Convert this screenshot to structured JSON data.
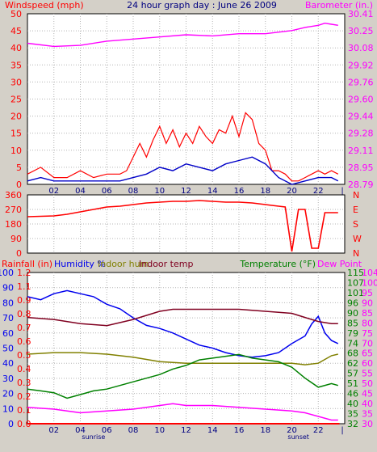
{
  "colors": {
    "background": "#d4d0c8",
    "plot_bg": "#ffffff",
    "grid": "#b4b4b4",
    "wind": "#ff0000",
    "gust": "#ff0000",
    "avg_wind": "#0000c8",
    "barometer": "#ff00ff",
    "direction": "#ff0000",
    "humidity": "#0000ee",
    "indoor_hum": "#808000",
    "indoor_temp": "#800020",
    "temperature": "#008000",
    "dew_point": "#ff00ff",
    "rainfall": "#ff0000",
    "title": "#000080"
  },
  "header": {
    "title": "24 hour graph day : June 26 2009",
    "left_label": "Windspeed (mph)",
    "right_label": "Barometer (in.)"
  },
  "bottom_header": {
    "rain": "Rainfall (in)",
    "humidity": "Humidity %",
    "indoor_hum": "Indoor hum",
    "indoor_temp": "Indoor temp",
    "temperature": "Temperature (°F)",
    "dew_point": "Dew Point"
  },
  "x_axis": {
    "ticks": [
      "02",
      "04",
      "06",
      "08",
      "10",
      "12",
      "14",
      "16",
      "18",
      "20",
      "22",
      "|"
    ],
    "sunrise_label": "sunrise",
    "sunset_label": "sunset"
  },
  "chart_data": [
    {
      "id": "wind",
      "type": "line",
      "x_range_hours": [
        0,
        24
      ],
      "y_left": {
        "label": "Windspeed (mph)",
        "ticks": [
          "0",
          "5",
          "10",
          "15",
          "20",
          "25",
          "30",
          "35",
          "40",
          "45",
          "50"
        ],
        "ylim": [
          0,
          50
        ]
      },
      "y_right": {
        "label": "Barometer (in.)",
        "ticks": [
          "28.79",
          "28.95",
          "29.11",
          "29.28",
          "29.44",
          "29.60",
          "29.76",
          "29.92",
          "30.08",
          "30.25",
          "30.41"
        ],
        "ylim": [
          28.79,
          30.41
        ]
      },
      "series": [
        {
          "key": "gust",
          "x": [
            0,
            1,
            2,
            3,
            4,
            5,
            6,
            7,
            7.5,
            8,
            8.5,
            9,
            9.5,
            10,
            10.5,
            11,
            11.5,
            12,
            12.5,
            13,
            13.5,
            14,
            14.5,
            15,
            15.5,
            16,
            16.5,
            17,
            17.5,
            18,
            18.5,
            19,
            19.5,
            20,
            20.5,
            21,
            21.5,
            22,
            22.5,
            23,
            23.5
          ],
          "y": [
            3,
            5,
            2,
            2,
            4,
            2,
            3,
            3,
            4,
            8,
            12,
            8,
            13,
            17,
            12,
            16,
            11,
            15,
            12,
            17,
            14,
            12,
            16,
            15,
            20,
            14,
            21,
            19,
            12,
            10,
            4,
            4,
            3,
            1,
            1,
            2,
            3,
            4,
            3,
            4,
            3
          ]
        },
        {
          "key": "avg_wind",
          "x": [
            0,
            1,
            2,
            3,
            4,
            5,
            6,
            7,
            8,
            9,
            10,
            11,
            12,
            13,
            14,
            15,
            16,
            17,
            18,
            19,
            20,
            21,
            22,
            23,
            23.5
          ],
          "y": [
            1,
            2,
            1,
            1,
            1,
            1,
            1,
            1,
            2,
            3,
            5,
            4,
            6,
            5,
            4,
            6,
            7,
            8,
            6,
            2,
            0,
            1,
            2,
            2,
            1
          ]
        },
        {
          "key": "barometer",
          "x": [
            0,
            2,
            4,
            6,
            8,
            10,
            12,
            14,
            16,
            18,
            20,
            21,
            22,
            22.5,
            23,
            23.5
          ],
          "y": [
            30.13,
            30.1,
            30.11,
            30.15,
            30.17,
            30.19,
            30.21,
            30.2,
            30.22,
            30.22,
            30.25,
            30.28,
            30.3,
            30.32,
            30.31,
            30.3
          ]
        }
      ]
    },
    {
      "id": "direction",
      "type": "line",
      "x_range_hours": [
        0,
        24
      ],
      "y_left": {
        "ticks": [
          "0",
          "90",
          "180",
          "270",
          "360"
        ],
        "ylim": [
          0,
          360
        ]
      },
      "y_right": {
        "ticks": [
          "N",
          "W",
          "S",
          "E",
          "N"
        ]
      },
      "series": [
        {
          "key": "direction",
          "x": [
            0,
            2,
            3,
            4,
            5,
            6,
            7,
            8,
            9,
            10,
            11,
            12,
            13,
            14,
            15,
            16,
            17,
            18,
            19,
            19.5,
            20,
            20.5,
            21,
            21.5,
            22,
            22.5,
            23,
            23.5
          ],
          "y": [
            225,
            230,
            240,
            255,
            270,
            285,
            290,
            300,
            310,
            315,
            320,
            320,
            325,
            320,
            315,
            315,
            310,
            300,
            290,
            285,
            10,
            270,
            270,
            30,
            30,
            250,
            250,
            250
          ]
        }
      ]
    },
    {
      "id": "temperature",
      "type": "line",
      "x_range_hours": [
        0,
        24
      ],
      "axes": {
        "rainfall": {
          "ticks": [
            "0.0",
            "0.1",
            "0.2",
            "0.3",
            "0.4",
            "0.5",
            "0.6",
            "0.7",
            "0.8",
            "0.9",
            "1.1",
            "1.2"
          ],
          "ylim": [
            0,
            1.2
          ]
        },
        "humidity": {
          "ticks": [
            "0",
            "10",
            "20",
            "30",
            "40",
            "50",
            "60",
            "70",
            "80",
            "90",
            "100"
          ],
          "ylim": [
            0,
            100
          ]
        },
        "temperature": {
          "ticks": [
            "32",
            "35",
            "40",
            "46",
            "51",
            "57",
            "62",
            "68",
            "74",
            "79",
            "85",
            "90",
            "96",
            "101",
            "107",
            "115"
          ],
          "ylim": [
            32,
            115
          ]
        },
        "indoor_temp": {
          "ticks": [
            "30",
            "35",
            "40",
            "45",
            "50",
            "55",
            "60",
            "65",
            "70",
            "75",
            "80",
            "85",
            "90",
            "95",
            "100",
            "104"
          ],
          "ylim": [
            30,
            104
          ]
        }
      },
      "series": [
        {
          "key": "humidity",
          "axis": "humidity",
          "x": [
            0,
            1,
            2,
            3,
            4,
            5,
            6,
            7,
            8,
            9,
            10,
            11,
            12,
            13,
            14,
            15,
            16,
            17,
            18,
            19,
            20,
            21,
            21.5,
            22,
            22.5,
            23,
            23.5
          ],
          "y": [
            84,
            82,
            86,
            88,
            86,
            84,
            79,
            76,
            70,
            65,
            63,
            60,
            56,
            52,
            50,
            47,
            45,
            44,
            45,
            47,
            53,
            58,
            66,
            71,
            60,
            55,
            53
          ]
        },
        {
          "key": "indoor_hum",
          "axis": "humidity",
          "x": [
            0,
            2,
            4,
            6,
            8,
            10,
            12,
            14,
            16,
            18,
            20,
            21,
            22,
            23,
            23.5
          ],
          "y": [
            46,
            47,
            47,
            46,
            44,
            41,
            40,
            40,
            40,
            40,
            40,
            39,
            40,
            45,
            46
          ]
        },
        {
          "key": "indoor_temp",
          "axis": "indoor_temp",
          "x": [
            0,
            2,
            4,
            6,
            8,
            10,
            11,
            12,
            14,
            16,
            18,
            20,
            21,
            22,
            23,
            23.5
          ],
          "y": [
            82,
            81,
            79,
            78,
            81,
            85,
            86,
            86,
            86,
            86,
            85,
            84,
            82,
            80,
            79,
            79
          ]
        },
        {
          "key": "temperature",
          "axis": "temperature",
          "x": [
            0,
            1,
            2,
            3,
            4,
            5,
            6,
            7,
            8,
            9,
            10,
            11,
            12,
            13,
            14,
            15,
            16,
            17,
            18,
            19,
            20,
            21,
            22,
            23,
            23.5
          ],
          "y": [
            51,
            50,
            49,
            46,
            48,
            50,
            51,
            53,
            55,
            57,
            59,
            62,
            64,
            67,
            68,
            69,
            70,
            68,
            67,
            66,
            63,
            57,
            52,
            54,
            53
          ]
        },
        {
          "key": "dew_point",
          "axis": "temperature",
          "x": [
            0,
            2,
            3,
            4,
            6,
            8,
            10,
            11,
            12,
            14,
            16,
            18,
            20,
            21,
            22,
            23,
            23.5
          ],
          "y": [
            41,
            40,
            39,
            38,
            39,
            40,
            42,
            43,
            42,
            42,
            41,
            40,
            39,
            38,
            36,
            34,
            34
          ]
        },
        {
          "key": "rainfall",
          "axis": "rainfall",
          "x": [
            0,
            23.6
          ],
          "y": [
            0,
            0
          ]
        }
      ]
    }
  ]
}
